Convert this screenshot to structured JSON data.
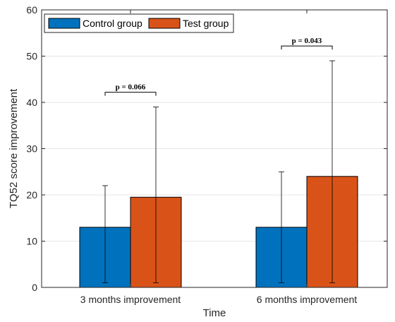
{
  "chart_data": {
    "type": "bar",
    "categories": [
      "3 months improvement",
      "6 months improvement"
    ],
    "series": [
      {
        "name": "Control group",
        "color": "#0072BD",
        "values": [
          13,
          13
        ],
        "error_low": [
          1,
          1
        ],
        "error_high": [
          22,
          25
        ]
      },
      {
        "name": "Test group",
        "color": "#D95319",
        "values": [
          19.5,
          24
        ],
        "error_low": [
          1,
          1
        ],
        "error_high": [
          39,
          49
        ]
      }
    ],
    "xlabel": "Time",
    "ylabel": "TQ52 score improvement",
    "ylim": [
      0,
      60
    ],
    "yticks": [
      0,
      10,
      20,
      30,
      40,
      50,
      60
    ],
    "grid": true,
    "legend": {
      "position": "top-left",
      "orientation": "horizontal"
    },
    "annotations": [
      {
        "category": 0,
        "text": "p = 0.066",
        "bracket_y": 42.2
      },
      {
        "category": 1,
        "text": "p = 0.043",
        "bracket_y": 52.2
      }
    ]
  }
}
